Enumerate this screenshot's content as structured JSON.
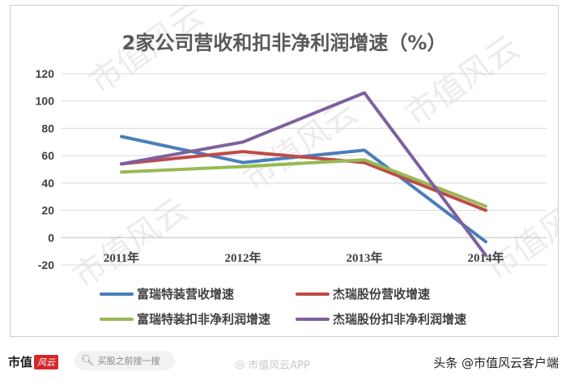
{
  "chart_data": {
    "type": "line",
    "title": "2家公司营收和扣非净利润增速（%）",
    "categories": [
      "2011年",
      "2012年",
      "2013年",
      "2014年"
    ],
    "ylim": [
      -20,
      120
    ],
    "yticks": [
      -20,
      0,
      20,
      40,
      60,
      80,
      100,
      120
    ],
    "grid": true,
    "legend_position": "bottom",
    "series": [
      {
        "name": "富瑞特装营收增速",
        "color": "#4a7ebb",
        "values": [
          74,
          55,
          64,
          -3
        ]
      },
      {
        "name": "杰瑞股份营收增速",
        "color": "#be4b48",
        "values": [
          54,
          63,
          55,
          20
        ]
      },
      {
        "name": "富瑞特装扣非净利润增速",
        "color": "#98b954",
        "values": [
          48,
          52,
          57,
          23
        ]
      },
      {
        "name": "杰瑞股份扣非净利润增速",
        "color": "#7d60a0",
        "values": [
          54,
          70,
          106,
          -13
        ]
      }
    ]
  },
  "watermark_text": "市值风云",
  "footer": {
    "brand_text": "市值",
    "brand_logo_text": "风云",
    "search_icon": "search-icon",
    "search_placeholder": "买股之前搜一搜",
    "app_watermark": "市值风云APP",
    "app_watermark_icon": "weibo-icon",
    "account_label": "头条 @市值风云客户端"
  }
}
